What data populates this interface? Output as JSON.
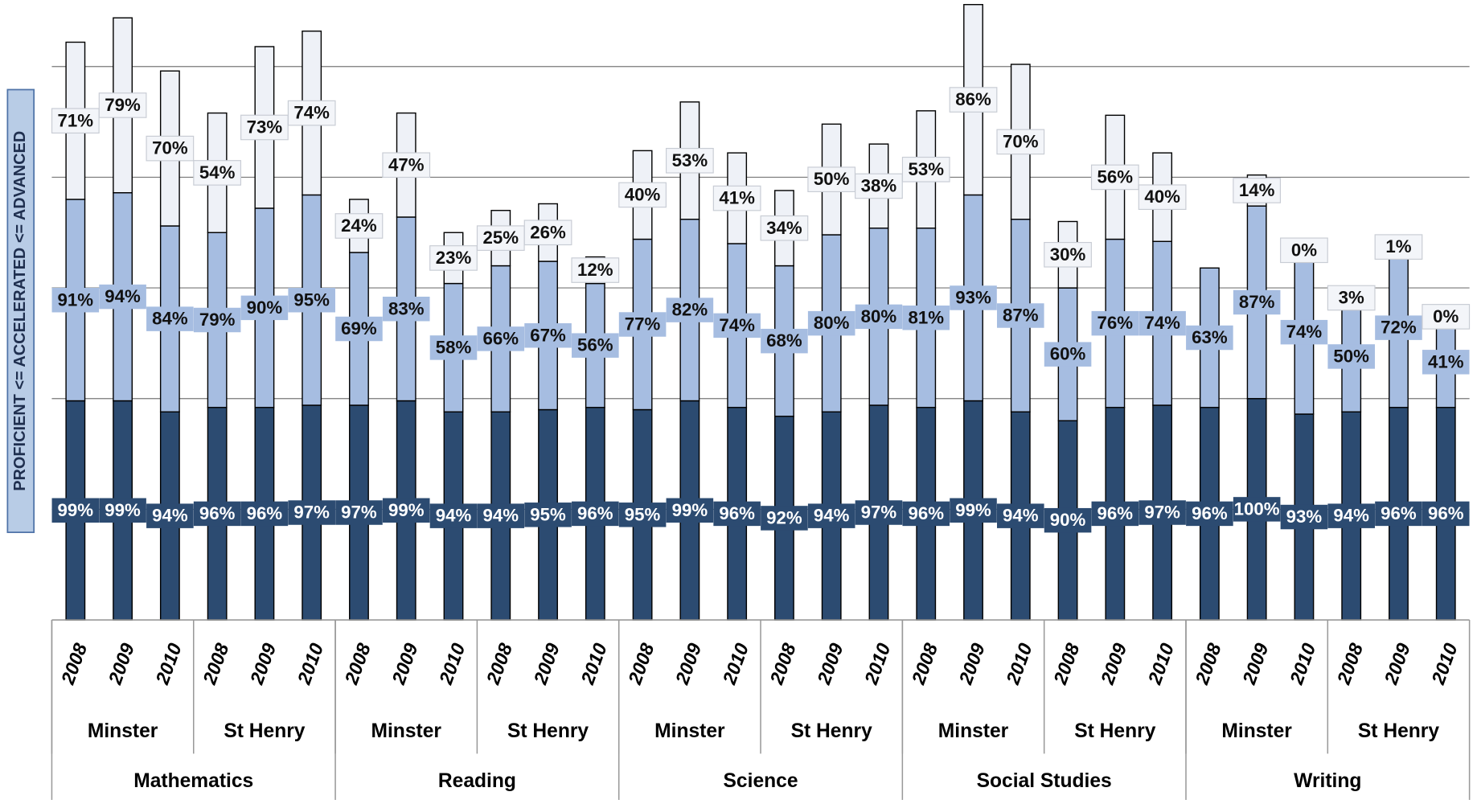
{
  "chart_data": {
    "type": "stacked_bar",
    "y_axis_label": "PROFICIENT <= ACCELERATED <= ADVANCED",
    "categories": [
      "2008",
      "2009",
      "2010",
      "2008",
      "2009",
      "2010",
      "2008",
      "2009",
      "2010",
      "2008",
      "2009",
      "2010",
      "2008",
      "2009",
      "2010",
      "2008",
      "2009",
      "2010",
      "2008",
      "2009",
      "2010",
      "2008",
      "2009",
      "2010",
      "2008",
      "2009",
      "2010",
      "2008",
      "2009",
      "2010"
    ],
    "schools": [
      "Minster",
      "St Henry",
      "Minster",
      "St Henry",
      "Minster",
      "St Henry",
      "Minster",
      "St Henry",
      "Minster",
      "St Henry"
    ],
    "subjects": [
      "Mathematics",
      "Reading",
      "Science",
      "Social Studies",
      "Writing"
    ],
    "ylim": [
      0,
      280
    ],
    "yticks": [
      50,
      100,
      150,
      200,
      250
    ],
    "grid": true,
    "series": [
      {
        "color": "#2c4b71",
        "label_color": "#ffffff",
        "values": [
          99,
          99,
          94,
          96,
          96,
          97,
          97,
          99,
          94,
          94,
          95,
          96,
          95,
          99,
          96,
          92,
          94,
          97,
          96,
          99,
          94,
          90,
          96,
          97,
          96,
          100,
          93,
          94,
          96,
          96
        ],
        "value_labels": [
          "99%",
          "99%",
          "94%",
          "96%",
          "96%",
          "97%",
          "97%",
          "99%",
          "94%",
          "94%",
          "95%",
          "96%",
          "95%",
          "99%",
          "96%",
          "92%",
          "94%",
          "97%",
          "96%",
          "99%",
          "94%",
          "90%",
          "96%",
          "97%",
          "96%",
          "100%",
          "93%",
          "94%",
          "96%",
          "96%"
        ]
      },
      {
        "color": "#a6bde1",
        "label_color": "#111111",
        "values": [
          91,
          94,
          84,
          79,
          90,
          95,
          69,
          83,
          58,
          66,
          67,
          56,
          77,
          82,
          74,
          68,
          80,
          80,
          81,
          93,
          87,
          60,
          76,
          74,
          63,
          87,
          74,
          50,
          72,
          41
        ],
        "value_labels": [
          "91%",
          "94%",
          "84%",
          "79%",
          "90%",
          "95%",
          "69%",
          "83%",
          "58%",
          "66%",
          "67%",
          "56%",
          "77%",
          "82%",
          "74%",
          "68%",
          "80%",
          "80%",
          "81%",
          "93%",
          "87%",
          "60%",
          "76%",
          "74%",
          "63%",
          "87%",
          "74%",
          "50%",
          "72%",
          "41%"
        ]
      },
      {
        "color": "#eef1f7",
        "label_color": "#111111",
        "values": [
          71,
          79,
          70,
          54,
          73,
          74,
          24,
          47,
          23,
          25,
          26,
          12,
          40,
          53,
          41,
          34,
          50,
          38,
          53,
          86,
          70,
          30,
          56,
          40,
          null,
          14,
          0,
          3,
          1,
          0
        ],
        "value_labels": [
          "71%",
          "79%",
          "70%",
          "54%",
          "73%",
          "74%",
          "24%",
          "47%",
          "23%",
          "25%",
          "26%",
          "12%",
          "40%",
          "53%",
          "41%",
          "34%",
          "50%",
          "38%",
          "53%",
          "86%",
          "70%",
          "30%",
          "56%",
          "40%",
          null,
          "14%",
          "0%",
          "3%",
          "1%",
          "0%"
        ]
      }
    ]
  }
}
